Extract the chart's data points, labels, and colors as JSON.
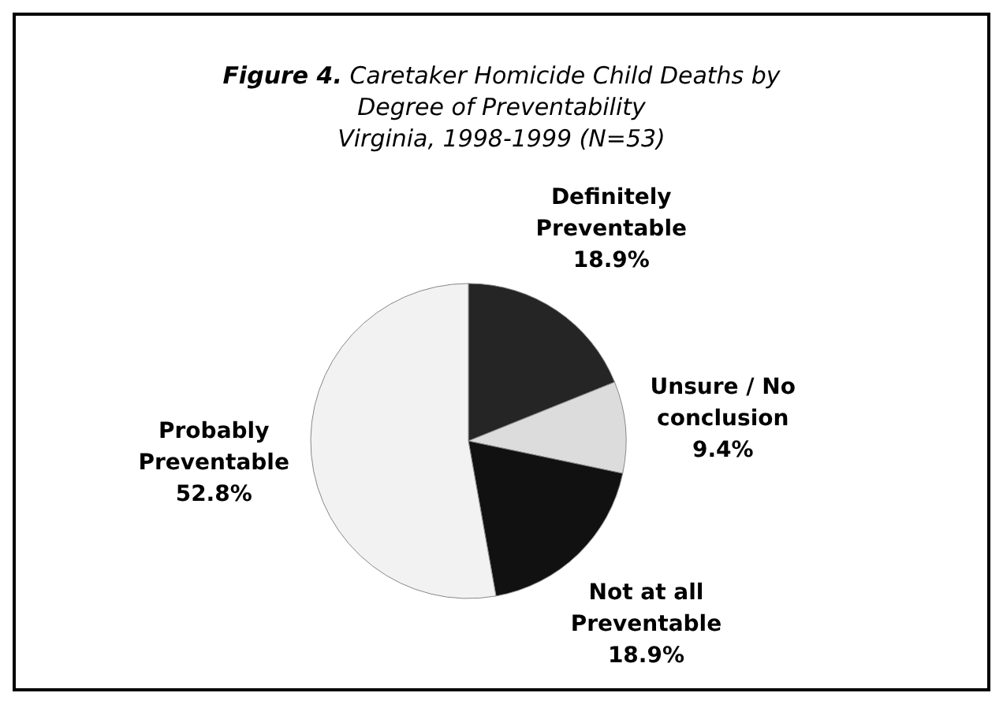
{
  "chart_data": {
    "type": "pie",
    "title": "Figure 4. Caretaker Homicide Child Deaths by Degree of Preventability",
    "subtitle": "Virginia, 1998-1999 (N=53)",
    "categories": [
      "Definitely Preventable",
      "Unsure / No conclusion",
      "Not at all Preventable",
      "Probably Preventable"
    ],
    "values": [
      18.9,
      9.4,
      18.9,
      52.8
    ],
    "colors": [
      "#252525",
      "#dcdcdc",
      "#111111",
      "#f2f2f2"
    ],
    "value_labels": [
      "18.9%",
      "9.4%",
      "18.9%",
      "52.8%"
    ]
  }
}
